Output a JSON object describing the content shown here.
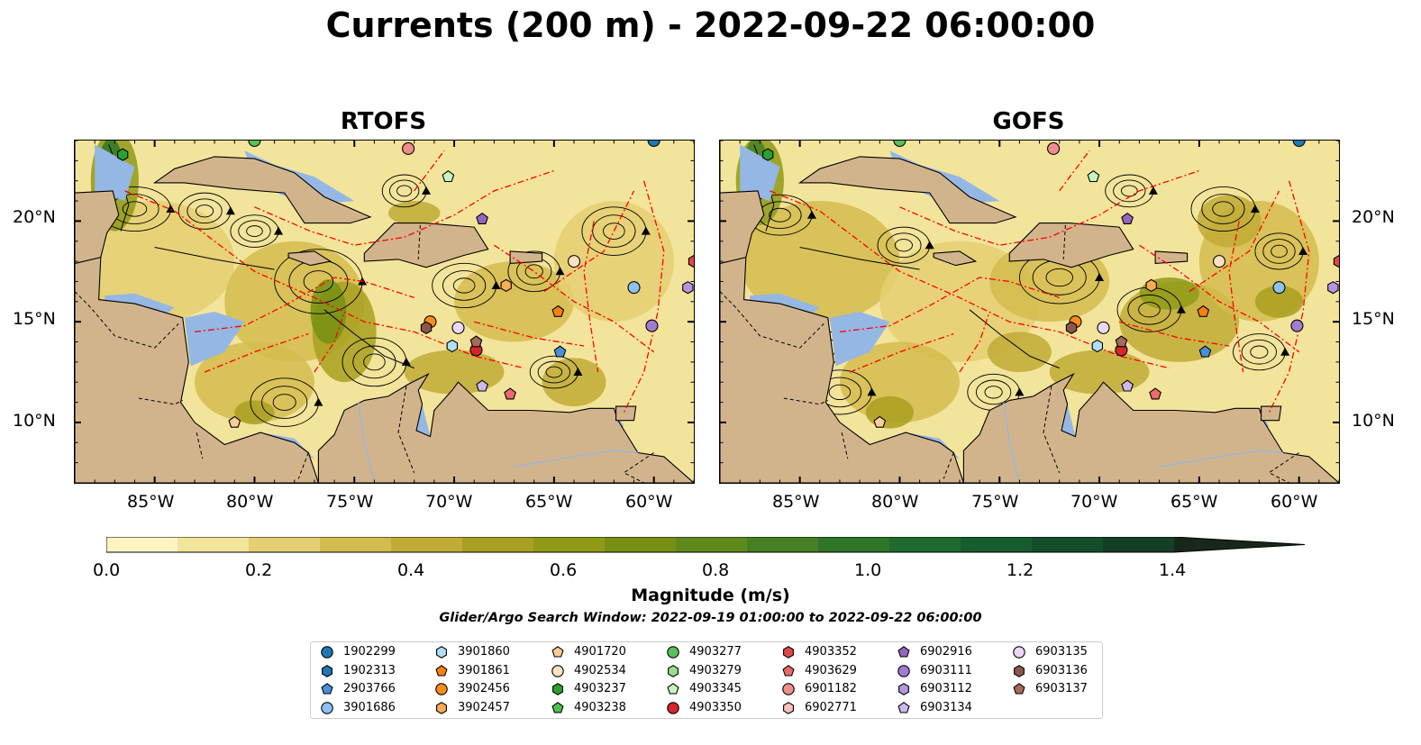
{
  "title": "Currents (200 m) - 2022-09-22 06:00:00",
  "panels": [
    {
      "title": "RTOFS"
    },
    {
      "title": "GOFS"
    }
  ],
  "axes": {
    "lon_ticks": [
      "85°W",
      "80°W",
      "75°W",
      "70°W",
      "65°W",
      "60°W"
    ],
    "lat_ticks": [
      "20°N",
      "15°N",
      "10°N"
    ],
    "lon_range": [
      -89,
      -58
    ],
    "lat_range": [
      7,
      24
    ]
  },
  "colorbar": {
    "label": "Magnitude (m/s)",
    "ticks": [
      "0.0",
      "0.2",
      "0.4",
      "0.6",
      "0.8",
      "1.0",
      "1.2",
      "1.4"
    ],
    "range": [
      0.0,
      1.5
    ],
    "step": 0.1,
    "extend": "max"
  },
  "search_window": "Glider/Argo Search Window: 2022-09-19 01:00:00 to 2022-09-22 06:00:00",
  "colors": {
    "land": "#d2b48c",
    "shallow_water": "#95b7e3",
    "eez_line": "#ff0000",
    "streamline": "#000000",
    "speed_scale": [
      "#fdf6c3",
      "#f3e49b",
      "#e4cf72",
      "#d3bc4e",
      "#c0ac36",
      "#a8a020",
      "#8f9a16",
      "#779014",
      "#5e8a1c",
      "#478022",
      "#2f7528",
      "#1f6a2e",
      "#165c2c",
      "#134d2a",
      "#143f26",
      "#163321",
      "#17281b"
    ]
  },
  "chart_data": {
    "type": "map",
    "legend_title": "",
    "legend": [
      {
        "id": "1902299",
        "marker": "circle",
        "color": "#1f77b4"
      },
      {
        "id": "1902313",
        "marker": "hexagon",
        "color": "#1f77b4"
      },
      {
        "id": "2903766",
        "marker": "pentagon",
        "color": "#4a90d9"
      },
      {
        "id": "3901686",
        "marker": "circle",
        "color": "#8ec1ee"
      },
      {
        "id": "3901860",
        "marker": "hexagon",
        "color": "#aee0f7"
      },
      {
        "id": "3901861",
        "marker": "pentagon",
        "color": "#ff7f0e"
      },
      {
        "id": "3902456",
        "marker": "circle",
        "color": "#ff8c1a"
      },
      {
        "id": "3902457",
        "marker": "hexagon",
        "color": "#ffaa55"
      },
      {
        "id": "4901720",
        "marker": "pentagon",
        "color": "#ffcc99"
      },
      {
        "id": "4902534",
        "marker": "circle",
        "color": "#ffe0bf"
      },
      {
        "id": "4903237",
        "marker": "hexagon",
        "color": "#2ca02c"
      },
      {
        "id": "4903238",
        "marker": "pentagon",
        "color": "#4dc04d"
      },
      {
        "id": "4903277",
        "marker": "circle",
        "color": "#5cbf5c"
      },
      {
        "id": "4903279",
        "marker": "hexagon",
        "color": "#98df8a"
      },
      {
        "id": "4903345",
        "marker": "pentagon",
        "color": "#c8f5c0"
      },
      {
        "id": "4903350",
        "marker": "circle",
        "color": "#d62728"
      },
      {
        "id": "4903352",
        "marker": "hexagon",
        "color": "#e04848"
      },
      {
        "id": "4903629",
        "marker": "pentagon",
        "color": "#ec6a6a"
      },
      {
        "id": "6901182",
        "marker": "circle",
        "color": "#f08c8c"
      },
      {
        "id": "6902771",
        "marker": "hexagon",
        "color": "#f9c0c0"
      },
      {
        "id": "6902916",
        "marker": "pentagon",
        "color": "#9467bd"
      },
      {
        "id": "6903111",
        "marker": "circle",
        "color": "#a07ccd"
      },
      {
        "id": "6903112",
        "marker": "hexagon",
        "color": "#b595dd"
      },
      {
        "id": "6903134",
        "marker": "pentagon",
        "color": "#cdb8ee"
      },
      {
        "id": "6903135",
        "marker": "circle",
        "color": "#ead8f8"
      },
      {
        "id": "6903136",
        "marker": "hexagon",
        "color": "#8c564b"
      },
      {
        "id": "6903137",
        "marker": "pentagon",
        "color": "#a56a5c"
      }
    ],
    "observations": [
      {
        "id": "4903237",
        "lon": -86.6,
        "lat": 23.3
      },
      {
        "id": "6901182",
        "lon": -72.3,
        "lat": 23.6
      },
      {
        "id": "4903345",
        "lon": -70.3,
        "lat": 22.2
      },
      {
        "id": "6902916",
        "lon": -68.6,
        "lat": 20.1
      },
      {
        "id": "4902534",
        "lon": -64.0,
        "lat": 18.0
      },
      {
        "id": "3902457",
        "lon": -67.4,
        "lat": 16.8
      },
      {
        "id": "3901861",
        "lon": -64.8,
        "lat": 15.5
      },
      {
        "id": "3901686",
        "lon": -61.0,
        "lat": 16.7
      },
      {
        "id": "6903111",
        "lon": -60.1,
        "lat": 14.8
      },
      {
        "id": "6903112",
        "lon": -58.3,
        "lat": 16.7
      },
      {
        "id": "3902456",
        "lon": -71.2,
        "lat": 15.0
      },
      {
        "id": "6903136",
        "lon": -71.4,
        "lat": 14.7
      },
      {
        "id": "6903135",
        "lon": -69.8,
        "lat": 14.7
      },
      {
        "id": "3901860",
        "lon": -70.1,
        "lat": 13.8
      },
      {
        "id": "4903350",
        "lon": -68.9,
        "lat": 13.6
      },
      {
        "id": "6903137",
        "lon": -68.9,
        "lat": 14.0
      },
      {
        "id": "6903134",
        "lon": -68.6,
        "lat": 11.8
      },
      {
        "id": "4903629",
        "lon": -67.2,
        "lat": 11.4
      },
      {
        "id": "2903766",
        "lon": -64.7,
        "lat": 13.5
      },
      {
        "id": "4901720",
        "lon": -81.0,
        "lat": 10.0
      },
      {
        "id": "4903277",
        "lon": -80.0,
        "lat": 24.0
      },
      {
        "id": "1902299",
        "lon": -60.0,
        "lat": 24.0
      },
      {
        "id": "4903352",
        "lon": -58.0,
        "lat": 18.0
      }
    ]
  }
}
